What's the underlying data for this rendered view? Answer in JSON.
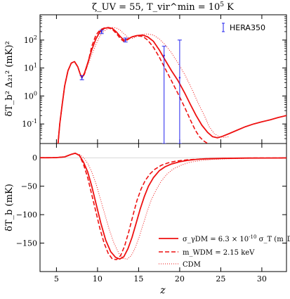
{
  "chart_data": [
    {
      "type": "line",
      "title": "ζ_UV = 55, T_vir^min = 10^5 K",
      "ylabel": "δT_b² Δ₂₁² (mK)²",
      "yscale": "log",
      "xlim": [
        3,
        33
      ],
      "ylim": [
        0.02,
        800
      ],
      "yticks": [
        0.1,
        1,
        10,
        100
      ],
      "yticklabels": [
        "10^-1",
        "10^0",
        "10^1",
        "10^2"
      ],
      "series": [
        {
          "name": "σ_γDM = 6.3 × 10^-10 σ_T (m_DM/GeV)",
          "style": "solid",
          "color": "#ee1111",
          "points": [
            [
              5.1,
              0.01
            ],
            [
              5.4,
              0.1
            ],
            [
              5.7,
              0.5
            ],
            [
              6,
              2.3
            ],
            [
              6.4,
              8
            ],
            [
              6.8,
              15
            ],
            [
              7.2,
              17
            ],
            [
              7.6,
              11
            ],
            [
              7.9,
              6
            ],
            [
              8.1,
              4.5
            ],
            [
              8.4,
              6.5
            ],
            [
              8.8,
              15
            ],
            [
              9.3,
              45
            ],
            [
              9.8,
              110
            ],
            [
              10.3,
              200
            ],
            [
              10.8,
              260
            ],
            [
              11.3,
              280
            ],
            [
              11.8,
              260
            ],
            [
              12.3,
              195
            ],
            [
              12.8,
              130
            ],
            [
              13.2,
              100
            ],
            [
              13.6,
              105
            ],
            [
              14.2,
              130
            ],
            [
              14.8,
              145
            ],
            [
              15.5,
              150
            ],
            [
              16.1,
              130
            ],
            [
              16.8,
              90
            ],
            [
              17.5,
              45
            ],
            [
              18.2,
              20
            ],
            [
              19,
              8
            ],
            [
              19.8,
              3.5
            ],
            [
              20.6,
              1.3
            ],
            [
              21.3,
              0.5
            ],
            [
              22,
              0.2
            ],
            [
              22.7,
              0.09
            ],
            [
              23.4,
              0.05
            ],
            [
              24,
              0.035
            ],
            [
              24.6,
              0.032
            ],
            [
              25.2,
              0.036
            ],
            [
              26,
              0.045
            ],
            [
              27,
              0.06
            ],
            [
              28,
              0.08
            ],
            [
              29,
              0.1
            ],
            [
              30,
              0.12
            ],
            [
              31,
              0.14
            ],
            [
              32,
              0.17
            ],
            [
              33,
              0.2
            ]
          ]
        },
        {
          "name": "m_WDM = 2.15 keV",
          "style": "dashed",
          "color": "#ee1111",
          "points": [
            [
              5.1,
              0.01
            ],
            [
              5.4,
              0.1
            ],
            [
              5.7,
              0.5
            ],
            [
              6,
              2.3
            ],
            [
              6.4,
              8
            ],
            [
              6.8,
              15
            ],
            [
              7.2,
              17
            ],
            [
              7.6,
              11
            ],
            [
              7.9,
              6
            ],
            [
              8.1,
              4.5
            ],
            [
              8.4,
              6
            ],
            [
              8.8,
              14
            ],
            [
              9.3,
              60
            ],
            [
              9.8,
              150
            ],
            [
              10.3,
              230
            ],
            [
              10.8,
              270
            ],
            [
              11.3,
              275
            ],
            [
              11.8,
              240
            ],
            [
              12.3,
              170
            ],
            [
              12.8,
              110
            ],
            [
              13.2,
              90
            ],
            [
              13.6,
              100
            ],
            [
              14.2,
              130
            ],
            [
              14.8,
              140
            ],
            [
              15.5,
              135
            ],
            [
              16.1,
              100
            ],
            [
              16.8,
              55
            ],
            [
              17.5,
              25
            ],
            [
              18.2,
              10
            ],
            [
              19,
              3.5
            ],
            [
              19.8,
              1.2
            ],
            [
              20.6,
              0.4
            ],
            [
              21.3,
              0.14
            ],
            [
              21.9,
              0.06
            ],
            [
              22.4,
              0.035
            ],
            [
              22.9,
              0.025
            ],
            [
              23.4,
              0.02
            ]
          ]
        },
        {
          "name": "CDM",
          "style": "dotted",
          "color": "#ee1111",
          "points": [
            [
              5.1,
              0.01
            ],
            [
              5.4,
              0.1
            ],
            [
              5.7,
              0.5
            ],
            [
              6,
              2.3
            ],
            [
              6.4,
              8
            ],
            [
              6.8,
              15
            ],
            [
              7.2,
              17
            ],
            [
              7.6,
              11
            ],
            [
              7.9,
              6
            ],
            [
              8.1,
              4.5
            ],
            [
              8.4,
              6
            ],
            [
              8.8,
              12
            ],
            [
              9.3,
              30
            ],
            [
              9.8,
              70
            ],
            [
              10.3,
              140
            ],
            [
              10.8,
              210
            ],
            [
              11.3,
              260
            ],
            [
              11.8,
              280
            ],
            [
              12.3,
              270
            ],
            [
              12.8,
              220
            ],
            [
              13.3,
              160
            ],
            [
              13.8,
              120
            ],
            [
              14.3,
              115
            ],
            [
              14.9,
              140
            ],
            [
              15.5,
              160
            ],
            [
              16.1,
              165
            ],
            [
              16.8,
              150
            ],
            [
              17.5,
              110
            ],
            [
              18.2,
              70
            ],
            [
              19,
              35
            ],
            [
              19.8,
              15
            ],
            [
              20.6,
              6
            ],
            [
              21.4,
              2
            ],
            [
              22.2,
              0.6
            ],
            [
              23,
              0.2
            ],
            [
              23.6,
              0.08
            ],
            [
              24.2,
              0.045
            ],
            [
              24.8,
              0.035
            ],
            [
              25.4,
              0.033
            ],
            [
              26,
              0.035
            ]
          ]
        }
      ],
      "errorbars": {
        "name": "HERA350",
        "color": "#2222ee",
        "points": [
          {
            "x": 8.1,
            "y": 4.5,
            "lo": 3.8,
            "hi": 5.3
          },
          {
            "x": 10.5,
            "y": 195,
            "lo": 170,
            "hi": 225
          },
          {
            "x": 13.4,
            "y": 100,
            "lo": 85,
            "hi": 118
          },
          {
            "x": 18.1,
            "y": 28,
            "lo": 0.02,
            "hi": 60
          },
          {
            "x": 20.0,
            "y": 4.5,
            "lo": 0.02,
            "hi": 100
          }
        ]
      },
      "legend": "top-right"
    },
    {
      "type": "line",
      "xlabel": "z",
      "ylabel": "δT_b (mK)",
      "xlim": [
        3,
        33
      ],
      "ylim": [
        -200,
        25
      ],
      "xticks": [
        5,
        10,
        15,
        20,
        25,
        30
      ],
      "yticks": [
        0,
        -50,
        -100,
        -150
      ],
      "series": [
        {
          "name": "σ_γDM = 6.3 × 10^-10 σ_T (m_DM/GeV)",
          "style": "solid",
          "color": "#ee1111",
          "points": [
            [
              3,
              0
            ],
            [
              4,
              0
            ],
            [
              5,
              0.3
            ],
            [
              6,
              1.5
            ],
            [
              6.8,
              6
            ],
            [
              7.3,
              8
            ],
            [
              7.8,
              4
            ],
            [
              8.3,
              -8
            ],
            [
              8.8,
              -25
            ],
            [
              9.3,
              -50
            ],
            [
              9.8,
              -80
            ],
            [
              10.4,
              -115
            ],
            [
              11,
              -145
            ],
            [
              11.6,
              -165
            ],
            [
              12.2,
              -175
            ],
            [
              12.7,
              -178
            ],
            [
              13.2,
              -174
            ],
            [
              13.7,
              -160
            ],
            [
              14.2,
              -140
            ],
            [
              14.7,
              -115
            ],
            [
              15.2,
              -90
            ],
            [
              15.7,
              -68
            ],
            [
              16.2,
              -50
            ],
            [
              16.8,
              -35
            ],
            [
              17.5,
              -23
            ],
            [
              18.2,
              -16
            ],
            [
              19,
              -11
            ],
            [
              20,
              -7
            ],
            [
              21,
              -4.5
            ],
            [
              22,
              -3
            ],
            [
              23,
              -2
            ],
            [
              25,
              -1.2
            ],
            [
              28,
              -0.6
            ],
            [
              33,
              -0.3
            ]
          ]
        },
        {
          "name": "m_WDM = 2.15 keV",
          "style": "dashed",
          "color": "#ee1111",
          "points": [
            [
              3,
              0
            ],
            [
              4,
              0
            ],
            [
              5,
              0.3
            ],
            [
              6,
              1.5
            ],
            [
              6.8,
              6
            ],
            [
              7.3,
              8
            ],
            [
              7.8,
              4
            ],
            [
              8.3,
              -12
            ],
            [
              8.8,
              -35
            ],
            [
              9.3,
              -65
            ],
            [
              9.8,
              -95
            ],
            [
              10.3,
              -125
            ],
            [
              10.8,
              -150
            ],
            [
              11.3,
              -168
            ],
            [
              11.8,
              -178
            ],
            [
              12.3,
              -179
            ],
            [
              12.8,
              -172
            ],
            [
              13.3,
              -155
            ],
            [
              13.8,
              -130
            ],
            [
              14.3,
              -102
            ],
            [
              14.8,
              -75
            ],
            [
              15.3,
              -55
            ],
            [
              15.8,
              -40
            ],
            [
              16.4,
              -28
            ],
            [
              17,
              -20
            ],
            [
              17.8,
              -13
            ],
            [
              18.6,
              -9
            ],
            [
              19.5,
              -6
            ],
            [
              21,
              -3.5
            ],
            [
              23,
              -2
            ],
            [
              26,
              -1
            ],
            [
              29,
              -0.5
            ],
            [
              33,
              -0.3
            ]
          ]
        },
        {
          "name": "CDM",
          "style": "dotted",
          "color": "#ee1111",
          "points": [
            [
              3,
              0
            ],
            [
              4,
              0
            ],
            [
              5,
              0.3
            ],
            [
              6,
              1.5
            ],
            [
              6.8,
              6
            ],
            [
              7.3,
              7
            ],
            [
              7.8,
              6
            ],
            [
              8.3,
              0
            ],
            [
              8.8,
              -10
            ],
            [
              9.3,
              -25
            ],
            [
              9.8,
              -45
            ],
            [
              10.3,
              -70
            ],
            [
              10.8,
              -95
            ],
            [
              11.4,
              -125
            ],
            [
              12,
              -150
            ],
            [
              12.6,
              -168
            ],
            [
              13.1,
              -177
            ],
            [
              13.6,
              -178
            ],
            [
              14.1,
              -172
            ],
            [
              14.6,
              -158
            ],
            [
              15.1,
              -138
            ],
            [
              15.6,
              -115
            ],
            [
              16.1,
              -92
            ],
            [
              16.6,
              -72
            ],
            [
              17.2,
              -55
            ],
            [
              17.8,
              -40
            ],
            [
              18.5,
              -28
            ],
            [
              19.3,
              -19
            ],
            [
              20.2,
              -13
            ],
            [
              21.2,
              -8
            ],
            [
              22.5,
              -5
            ],
            [
              24,
              -3
            ],
            [
              26,
              -1.8
            ],
            [
              29,
              -0.8
            ],
            [
              33,
              -0.4
            ]
          ]
        }
      ],
      "legend": "lower-right"
    }
  ]
}
